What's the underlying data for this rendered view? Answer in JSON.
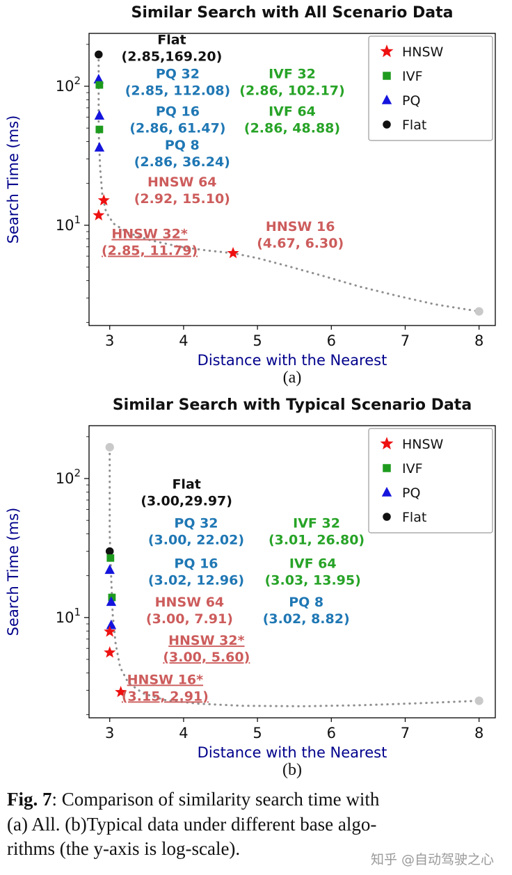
{
  "figure": {
    "subcaption_a": "(a)",
    "subcaption_b": "(b)",
    "caption_fig_label": "Fig. 7",
    "caption_line1_rest": ": Comparison of similarity search time with",
    "caption_line2": "(a) All. (b)Typical data under different base algo-",
    "caption_line3": "rithms (the y-axis is log-scale).",
    "watermark": "知乎 @自动驾驶之心"
  },
  "colors": {
    "axis_label": "#00008b",
    "title": "#111111",
    "curve": "#8f8f8f",
    "gray_point": "#c9c9c9",
    "annotation_red": "#cd5c5c",
    "annotation_blue": "#1f77b4",
    "annotation_green": "#27a327"
  },
  "chart_data": [
    {
      "type": "scatter",
      "title": "Similar Search with All Scenario Data",
      "xlabel": "Distance with the Nearest",
      "ylabel": "Search Time (ms)",
      "yscale": "log",
      "xlim": [
        2.72,
        8.22
      ],
      "ylim": [
        1.9,
        240
      ],
      "xticks": [
        3,
        4,
        5,
        6,
        7,
        8
      ],
      "yticks": [
        {
          "value": 10,
          "exp": "1"
        },
        {
          "value": 100,
          "exp": "2"
        }
      ],
      "legend": {
        "position": "top-right",
        "entries": [
          {
            "label": "HNSW",
            "marker": "star",
            "color": "#ee1111"
          },
          {
            "label": "IVF",
            "marker": "square",
            "color": "#1e9b1e"
          },
          {
            "label": "PQ",
            "marker": "triangle",
            "color": "#1515dd"
          },
          {
            "label": "Flat",
            "marker": "circle",
            "color": "#111111"
          }
        ]
      },
      "series": [
        {
          "name": "Flat",
          "marker": "circle",
          "color": "#111111",
          "size": 8,
          "points": [
            [
              2.85,
              169.2
            ]
          ]
        },
        {
          "name": "PQ",
          "marker": "triangle",
          "color": "#1515dd",
          "size": 8,
          "points": [
            [
              2.85,
              112.08
            ],
            [
              2.86,
              61.47
            ],
            [
              2.86,
              36.24
            ]
          ]
        },
        {
          "name": "IVF",
          "marker": "square",
          "color": "#1e9b1e",
          "size": 7.5,
          "points": [
            [
              2.86,
              102.17
            ],
            [
              2.86,
              48.88
            ]
          ]
        },
        {
          "name": "HNSW",
          "marker": "star",
          "color": "#ee1111",
          "size": 9,
          "points": [
            [
              2.92,
              15.1
            ],
            [
              2.85,
              11.79
            ],
            [
              4.67,
              6.3
            ]
          ]
        },
        {
          "name": "pareto-endpoint",
          "marker": "circle",
          "color": "#c9c9c9",
          "size": 8.5,
          "points": [
            [
              8.0,
              2.4
            ]
          ]
        }
      ],
      "frontier_curve": {
        "style": "dotted",
        "color": "#8f8f8f",
        "points": [
          [
            2.85,
            169
          ],
          [
            2.85,
            90
          ],
          [
            2.85,
            48
          ],
          [
            2.87,
            26
          ],
          [
            2.9,
            16.5
          ],
          [
            2.95,
            12.5
          ],
          [
            3.05,
            10.3
          ],
          [
            3.25,
            8.8
          ],
          [
            3.55,
            7.8
          ],
          [
            3.95,
            7.0
          ],
          [
            4.3,
            6.6
          ],
          [
            4.67,
            6.3
          ],
          [
            5.0,
            5.8
          ],
          [
            5.4,
            5.1
          ],
          [
            5.9,
            4.3
          ],
          [
            6.4,
            3.6
          ],
          [
            6.9,
            3.1
          ],
          [
            7.4,
            2.7
          ],
          [
            8.0,
            2.4
          ]
        ]
      },
      "annotations": [
        {
          "lines": [
            "Flat",
            "(2.85,169.20)"
          ],
          "x": 3.84,
          "y": 190,
          "color": "#111111",
          "underline": false
        },
        {
          "lines": [
            "PQ 32",
            "(2.85, 112.08)"
          ],
          "x": 3.92,
          "y": 108,
          "color": "#1f77b4",
          "underline": false
        },
        {
          "lines": [
            "IVF 32",
            "(2.86, 102.17)"
          ],
          "x": 5.47,
          "y": 108,
          "color": "#27a327",
          "underline": false
        },
        {
          "lines": [
            "PQ 16",
            "(2.86, 61.47)"
          ],
          "x": 3.92,
          "y": 58,
          "color": "#1f77b4",
          "underline": false
        },
        {
          "lines": [
            "IVF 64",
            "(2.86, 48.88)"
          ],
          "x": 5.47,
          "y": 58,
          "color": "#27a327",
          "underline": false
        },
        {
          "lines": [
            "PQ 8",
            "(2.86, 36.24)"
          ],
          "x": 3.98,
          "y": 33,
          "color": "#1f77b4",
          "underline": false
        },
        {
          "lines": [
            "HNSW 64",
            "(2.92, 15.10)"
          ],
          "x": 3.98,
          "y": 18,
          "color": "#cd5c5c",
          "underline": false
        },
        {
          "lines": [
            "HNSW 32*",
            "(2.85, 11.79)"
          ],
          "x": 3.54,
          "y": 7.6,
          "color": "#cd5c5c",
          "underline": true
        },
        {
          "lines": [
            "HNSW 16",
            "(4.67, 6.30)"
          ],
          "x": 5.58,
          "y": 8.6,
          "color": "#cd5c5c",
          "underline": false
        }
      ]
    },
    {
      "type": "scatter",
      "title": "Similar Search with Typical Scenario Data",
      "xlabel": "Distance with the Nearest",
      "ylabel": "Search Time (ms)",
      "yscale": "log",
      "xlim": [
        2.72,
        8.22
      ],
      "ylim": [
        1.9,
        240
      ],
      "xticks": [
        3,
        4,
        5,
        6,
        7,
        8
      ],
      "yticks": [
        {
          "value": 10,
          "exp": "1"
        },
        {
          "value": 100,
          "exp": "2"
        }
      ],
      "legend": {
        "position": "top-right",
        "entries": [
          {
            "label": "HNSW",
            "marker": "star",
            "color": "#ee1111"
          },
          {
            "label": "IVF",
            "marker": "square",
            "color": "#1e9b1e"
          },
          {
            "label": "PQ",
            "marker": "triangle",
            "color": "#1515dd"
          },
          {
            "label": "Flat",
            "marker": "circle",
            "color": "#111111"
          }
        ]
      },
      "series": [
        {
          "name": "pareto-endpoint-top",
          "marker": "circle",
          "color": "#c9c9c9",
          "size": 8.5,
          "points": [
            [
              3.0,
              168
            ]
          ]
        },
        {
          "name": "Flat",
          "marker": "circle",
          "color": "#111111",
          "size": 8,
          "points": [
            [
              3.0,
              29.97
            ]
          ]
        },
        {
          "name": "IVF",
          "marker": "square",
          "color": "#1e9b1e",
          "size": 7.5,
          "points": [
            [
              3.01,
              26.8
            ],
            [
              3.03,
              13.95
            ]
          ]
        },
        {
          "name": "PQ",
          "marker": "triangle",
          "color": "#1515dd",
          "size": 8,
          "points": [
            [
              3.0,
              22.02
            ],
            [
              3.02,
              12.96
            ],
            [
              3.02,
              8.82
            ]
          ]
        },
        {
          "name": "HNSW",
          "marker": "star",
          "color": "#ee1111",
          "size": 9,
          "points": [
            [
              3.0,
              7.91
            ],
            [
              3.0,
              5.6
            ],
            [
              3.15,
              2.91
            ]
          ]
        },
        {
          "name": "pareto-endpoint",
          "marker": "circle",
          "color": "#c9c9c9",
          "size": 8.5,
          "points": [
            [
              8.0,
              2.52
            ]
          ]
        }
      ],
      "frontier_curve": {
        "style": "dotted",
        "color": "#8f8f8f",
        "points": [
          [
            3.0,
            165
          ],
          [
            3.0,
            85
          ],
          [
            3.0,
            40
          ],
          [
            3.02,
            19
          ],
          [
            3.04,
            10.5
          ],
          [
            3.08,
            6.5
          ],
          [
            3.14,
            4.4
          ],
          [
            3.25,
            3.4
          ],
          [
            3.45,
            2.85
          ],
          [
            3.75,
            2.55
          ],
          [
            4.2,
            2.4
          ],
          [
            4.8,
            2.32
          ],
          [
            5.6,
            2.3
          ],
          [
            6.4,
            2.34
          ],
          [
            7.2,
            2.42
          ],
          [
            8.0,
            2.52
          ]
        ]
      },
      "annotations": [
        {
          "lines": [
            "Flat",
            "(3.00,29.97)"
          ],
          "x": 4.04,
          "y": 80,
          "color": "#111111",
          "underline": false
        },
        {
          "lines": [
            "PQ 32",
            "(3.00, 22.02)"
          ],
          "x": 4.17,
          "y": 42,
          "color": "#1f77b4",
          "underline": false
        },
        {
          "lines": [
            "IVF 32",
            "(3.01, 26.80)"
          ],
          "x": 5.8,
          "y": 42,
          "color": "#27a327",
          "underline": false
        },
        {
          "lines": [
            "PQ 16",
            "(3.02, 12.96)"
          ],
          "x": 4.17,
          "y": 21.5,
          "color": "#1f77b4",
          "underline": false
        },
        {
          "lines": [
            "IVF 64",
            "(3.03, 13.95)"
          ],
          "x": 5.75,
          "y": 21.5,
          "color": "#27a327",
          "underline": false
        },
        {
          "lines": [
            "HNSW 64",
            "(3.00, 7.91)"
          ],
          "x": 4.08,
          "y": 11.3,
          "color": "#cd5c5c",
          "underline": false
        },
        {
          "lines": [
            "PQ 8",
            "(3.02, 8.82)"
          ],
          "x": 5.66,
          "y": 11.3,
          "color": "#1f77b4",
          "underline": false
        },
        {
          "lines": [
            "HNSW 32*",
            "(3.00, 5.60)"
          ],
          "x": 4.31,
          "y": 6.0,
          "color": "#cd5c5c",
          "underline": true
        },
        {
          "lines": [
            "HNSW 16*",
            "(3.15, 2.91)"
          ],
          "x": 3.75,
          "y": 3.14,
          "color": "#cd5c5c",
          "underline": true
        }
      ]
    }
  ]
}
